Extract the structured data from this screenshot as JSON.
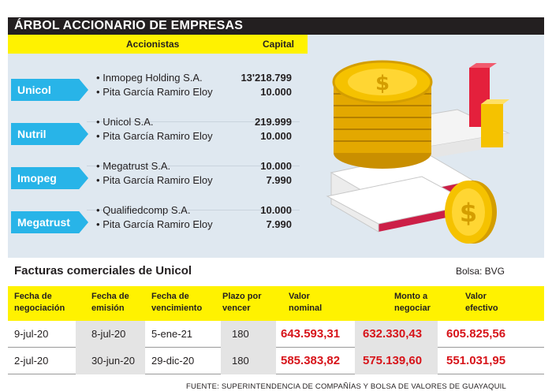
{
  "title": "ÁRBOL ACCIONARIO DE EMPRESAS",
  "headers": {
    "accionistas": "Accionistas",
    "capital": "Capital"
  },
  "companies": [
    {
      "name": "Unicol",
      "holders": [
        {
          "name": "Inmopeg Holding S.A.",
          "capital": "13'218.799"
        },
        {
          "name": "Pita García Ramiro Eloy",
          "capital": "10.000"
        }
      ]
    },
    {
      "name": "Nutril",
      "holders": [
        {
          "name": "Unicol S.A.",
          "capital": "219.999"
        },
        {
          "name": "Pita García Ramiro Eloy",
          "capital": "10.000"
        }
      ]
    },
    {
      "name": "Imopeg",
      "holders": [
        {
          "name": "Megatrust S.A.",
          "capital": "10.000"
        },
        {
          "name": "Pita García Ramiro Eloy",
          "capital": "7.990"
        }
      ]
    },
    {
      "name": "Megatrust",
      "holders": [
        {
          "name": "Qualifiedcomp S.A.",
          "capital": "10.000"
        },
        {
          "name": "Pita García Ramiro Eloy",
          "capital": "7.990"
        }
      ]
    }
  ],
  "bullet": "•",
  "facturas": {
    "title": "Facturas comerciales de Unicol",
    "bolsa": "Bolsa: BVG",
    "columns": [
      [
        "Fecha de",
        "negociación"
      ],
      [
        "Fecha de",
        "emisión"
      ],
      [
        "Fecha de",
        "vencimiento"
      ],
      [
        "Plazo por",
        "vencer"
      ],
      [
        "Valor",
        "nominal"
      ],
      [
        "Monto a",
        "negociar"
      ],
      [
        "Valor",
        "efectivo"
      ]
    ],
    "rows": [
      [
        "9-jul-20",
        "8-jul-20",
        "5-ene-21",
        "180",
        "643.593,31",
        "632.330,43",
        "605.825,56"
      ],
      [
        "2-jul-20",
        "30-jun-20",
        "29-dic-20",
        "180",
        "585.383,82",
        "575.139,60",
        "551.031,95"
      ]
    ],
    "source": "FUENTE: SUPERINTENDENCIA DE COMPAÑÍAS Y BOLSA DE VALORES DE GUAYAQUIL"
  },
  "colors": {
    "accent_yellow": "#fff200",
    "tag_blue": "#28b4e8",
    "value_red": "#d7141a",
    "coin_gold": "#f5c200"
  }
}
